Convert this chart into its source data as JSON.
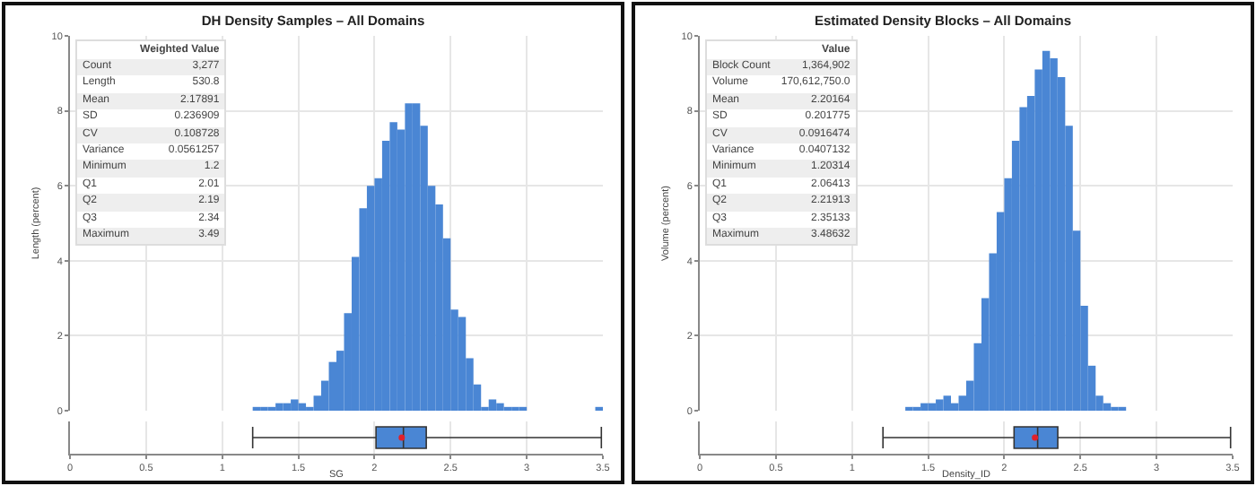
{
  "chart_data": [
    {
      "type": "histogram",
      "title": "DH Density Samples – All Domains",
      "ylabel": "Length (percent)",
      "bins": [
        1.2,
        1.25,
        1.3,
        1.35,
        1.4,
        1.45,
        1.5,
        1.55,
        1.6,
        1.65,
        1.7,
        1.75,
        1.8,
        1.85,
        1.9,
        1.95,
        2.0,
        2.05,
        2.1,
        2.15,
        2.2,
        2.25,
        2.3,
        2.35,
        2.4,
        2.45,
        2.5,
        2.55,
        2.6,
        2.65,
        2.7,
        2.75,
        2.8,
        2.85,
        2.9,
        2.95,
        3.0,
        3.05,
        3.1,
        3.15,
        3.2,
        3.25,
        3.3,
        3.35,
        3.4,
        3.45,
        3.5
      ],
      "values": [
        0.1,
        0.1,
        0.1,
        0.2,
        0.2,
        0.3,
        0.2,
        0.1,
        0.4,
        0.8,
        1.3,
        1.6,
        2.6,
        4.1,
        5.4,
        6.0,
        6.2,
        7.2,
        7.7,
        7.5,
        8.2,
        8.2,
        7.6,
        6.0,
        5.5,
        4.6,
        2.7,
        2.5,
        1.4,
        0.7,
        0.1,
        0.3,
        0.2,
        0.1,
        0.1,
        0.1,
        0,
        0,
        0,
        0,
        0,
        0,
        0,
        0,
        0,
        0.1
      ],
      "color": "#4a86d4",
      "xlim": [
        0,
        3.5
      ],
      "xticks": [
        0,
        0.5,
        1,
        1.5,
        2,
        2.5,
        3,
        3.5
      ],
      "ylim": [
        0,
        10
      ],
      "yticks": [
        0,
        2,
        4,
        6,
        8,
        10
      ],
      "grid": true,
      "tick_labels": "y",
      "annotations": [
        "Weighted Value",
        "Count",
        "3,277",
        "Length",
        "530.8",
        "Mean",
        "2.17891",
        "SD",
        "0.236909",
        "CV",
        "0.108728",
        "Variance",
        "0.0561257",
        "Minimum",
        "1.2",
        "Q1",
        "2.01",
        "Q2",
        "2.19",
        "Q3",
        "2.34",
        "Maximum",
        "3.49"
      ]
    },
    {
      "type": "box",
      "categories": [
        null
      ],
      "orientation": "horizontal",
      "color": "#4a86d4",
      "boxes": [
        {
          "low": 1.2,
          "q1": 2.01,
          "median": 2.19,
          "q3": 2.34,
          "high": 3.49,
          "mean": 2.17891
        }
      ],
      "xlim": [
        0,
        3.5
      ],
      "xticks": [
        0,
        0.5,
        1,
        1.5,
        2,
        2.5,
        3,
        3.5
      ],
      "xlabel": "SG",
      "grid": "x",
      "tick_labels": "x"
    },
    {
      "type": "histogram",
      "title": "Estimated Density Blocks – All Domains",
      "ylabel": "Volume (percent)",
      "bins": [
        1.2,
        1.25,
        1.3,
        1.35,
        1.4,
        1.45,
        1.5,
        1.55,
        1.6,
        1.65,
        1.7,
        1.75,
        1.8,
        1.85,
        1.9,
        1.95,
        2.0,
        2.05,
        2.1,
        2.15,
        2.2,
        2.25,
        2.3,
        2.35,
        2.4,
        2.45,
        2.5,
        2.55,
        2.6,
        2.65,
        2.7,
        2.75,
        2.8,
        2.85,
        2.9,
        2.95,
        3.0,
        3.05,
        3.1,
        3.15,
        3.2,
        3.25,
        3.3,
        3.35,
        3.4,
        3.45,
        3.5
      ],
      "values": [
        0,
        0,
        0,
        0.1,
        0.1,
        0.2,
        0.2,
        0.3,
        0.4,
        0.2,
        0.4,
        0.8,
        1.8,
        3.0,
        4.2,
        5.3,
        6.2,
        7.2,
        8.1,
        8.4,
        9.1,
        9.6,
        9.4,
        8.9,
        7.6,
        4.8,
        2.8,
        1.2,
        0.4,
        0.2,
        0.1,
        0.1,
        0,
        0,
        0,
        0,
        0,
        0,
        0,
        0,
        0,
        0,
        0,
        0,
        0,
        0
      ],
      "color": "#4a86d4",
      "xlim": [
        0,
        3.5
      ],
      "xticks": [
        0,
        0.5,
        1,
        1.5,
        2,
        2.5,
        3,
        3.5
      ],
      "ylim": [
        0,
        10
      ],
      "yticks": [
        0,
        2,
        4,
        6,
        8,
        10
      ],
      "grid": true,
      "tick_labels": "y",
      "annotations": [
        "Value",
        "Block Count",
        "1,364,902",
        "Volume",
        "170,612,750.0",
        "Mean",
        "2.20164",
        "SD",
        "0.201775",
        "CV",
        "0.0916474",
        "Variance",
        "0.0407132",
        "Minimum",
        "1.20314",
        "Q1",
        "2.06413",
        "Q2",
        "2.21913",
        "Q3",
        "2.35133",
        "Maximum",
        "3.48632"
      ]
    },
    {
      "type": "box",
      "categories": [
        null
      ],
      "orientation": "horizontal",
      "color": "#4a86d4",
      "boxes": [
        {
          "low": 1.20314,
          "q1": 2.06413,
          "median": 2.21913,
          "q3": 2.35133,
          "high": 3.48632,
          "mean": 2.20164
        }
      ],
      "xlim": [
        0,
        3.5
      ],
      "xticks": [
        0,
        0.5,
        1,
        1.5,
        2,
        2.5,
        3,
        3.5
      ],
      "xlabel": "Density_ID",
      "grid": "x",
      "tick_labels": "x"
    }
  ]
}
